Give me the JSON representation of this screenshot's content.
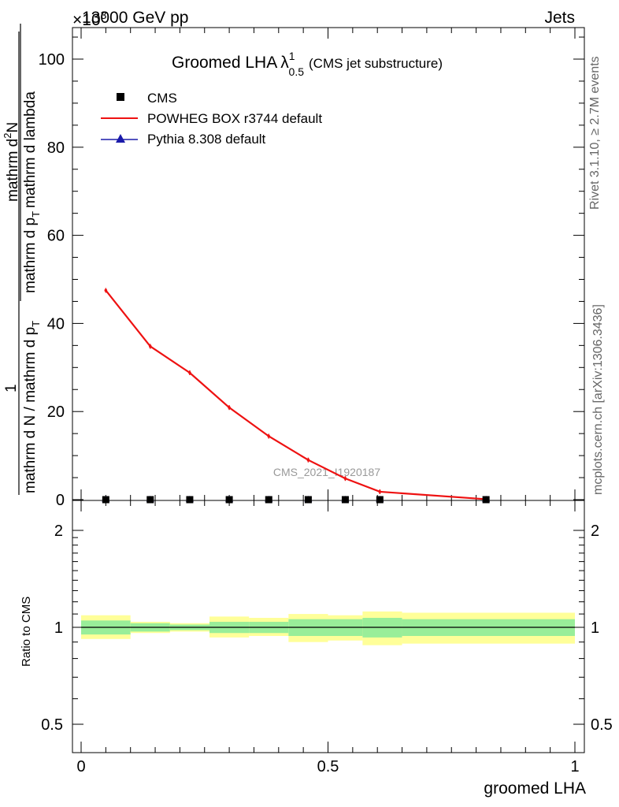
{
  "header": {
    "left": "13000 GeV pp",
    "right": "Jets",
    "exponent": "×10",
    "exponent_power": "3"
  },
  "side_text": {
    "rivet": "Rivet 3.1.10, ≥ 2.7M events",
    "mcplots": "mcplots.cern.ch [arXiv:1306.3436]"
  },
  "watermark": "CMS_2021_I1920187",
  "main_title": {
    "text": "Groomed LHA",
    "symbol": "λ",
    "sup": "1",
    "sub": "0.5",
    "suffix": "(CMS jet substructure)"
  },
  "y_axis_label": {
    "numerator_top": "1",
    "denominator_bottom": "mathrm d N / mathrm d p",
    "denominator_sub": "T",
    "fraction_top": "mathrm d",
    "fraction_top_sup": "2",
    "fraction_top_end": "N",
    "fraction_bottom": "mathrm d p",
    "fraction_bottom_sub": "T",
    "fraction_bottom_end": "mathrm d lambda"
  },
  "ratio_y_label": "Ratio to CMS",
  "x_axis_label": "groomed LHA",
  "legend": [
    {
      "label": "CMS",
      "marker": "square",
      "color": "#000000"
    },
    {
      "label": "POWHEG BOX r3744 default",
      "marker": "line",
      "color": "#ee1111"
    },
    {
      "label": "Pythia 8.308 default",
      "marker": "triangle",
      "color": "#1a1aaa"
    }
  ],
  "chart_data": [
    {
      "type": "line",
      "panel": "main",
      "x": [
        0.05,
        0.14,
        0.22,
        0.3,
        0.38,
        0.46,
        0.535,
        0.605,
        0.82
      ],
      "series": [
        {
          "name": "CMS",
          "values": [
            0,
            0,
            0,
            0,
            0,
            0,
            0,
            0,
            0
          ]
        },
        {
          "name": "POWHEG BOX r3744 default",
          "values": [
            47.5,
            34.8,
            28.8,
            20.9,
            14.4,
            9.0,
            4.8,
            1.8,
            0.1
          ]
        },
        {
          "name": "Pythia 8.308 default",
          "values": [
            0,
            0,
            0,
            0,
            0,
            0,
            0,
            0,
            0
          ]
        }
      ],
      "xlim": [
        -0.02,
        1.02
      ],
      "ylim": [
        0,
        107
      ],
      "y_ticks": [
        0,
        20,
        40,
        60,
        80,
        100
      ],
      "y_tick_labels": [
        "0",
        "20",
        "40",
        "60",
        "80",
        "100"
      ]
    },
    {
      "type": "area",
      "panel": "ratio",
      "xlabel": "groomed LHA",
      "ylabel": "Ratio to CMS",
      "x_edges": [
        0,
        0.1,
        0.18,
        0.26,
        0.34,
        0.42,
        0.5,
        0.57,
        0.65,
        1.0
      ],
      "band_inner_low": [
        0.95,
        0.97,
        0.98,
        0.96,
        0.96,
        0.94,
        0.94,
        0.93,
        0.94
      ],
      "band_inner_high": [
        1.05,
        1.03,
        1.02,
        1.04,
        1.04,
        1.06,
        1.06,
        1.07,
        1.06
      ],
      "band_outer_low": [
        0.92,
        0.96,
        0.97,
        0.93,
        0.94,
        0.9,
        0.91,
        0.88,
        0.89
      ],
      "band_outer_high": [
        1.09,
        1.04,
        1.03,
        1.08,
        1.07,
        1.1,
        1.09,
        1.12,
        1.11
      ],
      "reference": 1,
      "y_ticks": [
        0.5,
        1,
        2
      ],
      "y_tick_labels": [
        "0.5",
        "1",
        "2"
      ],
      "x_ticks": [
        0,
        0.5,
        1
      ],
      "x_tick_labels": [
        "0",
        "0.5",
        "1"
      ],
      "colors": {
        "inner": "#99ee99",
        "outer": "#ffff99"
      }
    }
  ]
}
